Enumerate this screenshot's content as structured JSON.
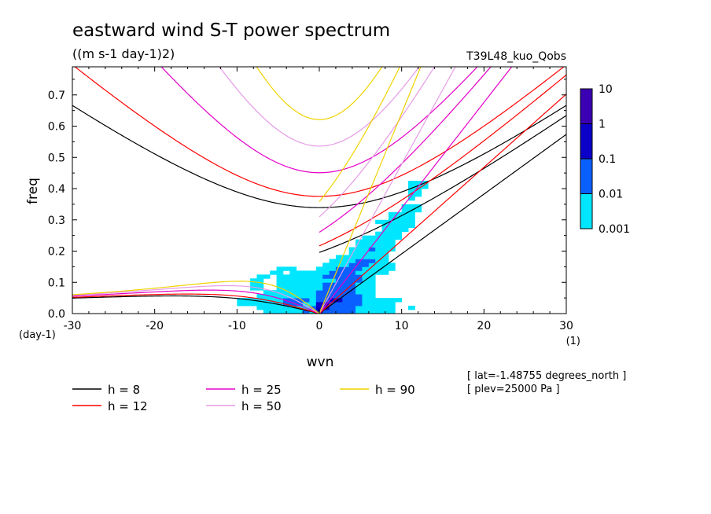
{
  "chart_data": {
    "type": "heatmap",
    "title": "eastward wind S-T power spectrum",
    "subtitle": "((m s-1 day-1)2)",
    "run_label": "T39L48_kuo_Qobs",
    "xlabel": "wvn",
    "ylabel": "freq",
    "x_unit": "(1)",
    "y_unit": "(day-1)",
    "xlim": [
      -30,
      30
    ],
    "ylim": [
      0,
      0.79
    ],
    "x_ticks": [
      -30,
      -20,
      -10,
      0,
      10,
      20,
      30
    ],
    "x_tick_labels": [
      "-30",
      "-20",
      "-10",
      "0",
      "10",
      "20",
      "30"
    ],
    "y_ticks": [
      0,
      0.1,
      0.2,
      0.3,
      0.4,
      0.5,
      0.6,
      0.7
    ],
    "y_tick_labels": [
      "0.0",
      "0.1",
      "0.2",
      "0.3",
      "0.4",
      "0.5",
      "0.6",
      "0.7"
    ],
    "colorbar": {
      "levels": [
        "10",
        "1",
        "0.1",
        "0.01",
        "0.001"
      ],
      "colors": [
        "#3c00b4",
        "#0a00c8",
        "#0a60ff",
        "#00e6ff"
      ]
    },
    "dispersion_curves": [
      {
        "h": 8,
        "label": "h =  8",
        "color": "#000000"
      },
      {
        "h": 12,
        "label": "h = 12",
        "color": "#ff0000"
      },
      {
        "h": 25,
        "label": "h = 25",
        "color": "#e600c8"
      },
      {
        "h": 50,
        "label": "h = 50",
        "color": "#e69be6"
      },
      {
        "h": 90,
        "label": "h = 90",
        "color": "#f0d200"
      }
    ],
    "annotations": [
      "[ lat=-1.48755 degrees_north ]",
      "[ plev=25000 Pa ]"
    ],
    "grid": false
  }
}
